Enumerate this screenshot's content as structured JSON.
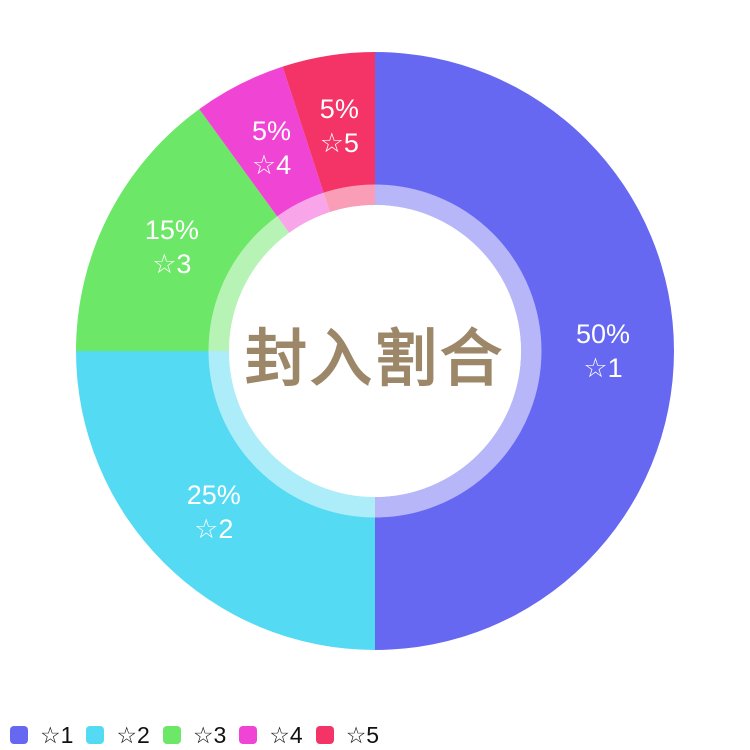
{
  "chart_data": {
    "type": "pie",
    "donut": true,
    "title": "封入割合",
    "categories": [
      "☆1",
      "☆2",
      "☆3",
      "☆4",
      "☆5"
    ],
    "values": [
      50,
      25,
      15,
      5,
      5
    ],
    "percent_labels": [
      "50%",
      "25%",
      "15%",
      "5%",
      "5%"
    ],
    "colors": [
      "#6668f2",
      "#54daf2",
      "#6ce767",
      "#f044d4",
      "#f43366"
    ],
    "unit": "%",
    "start_angle_deg": 0,
    "direction": "clockwise",
    "slice_label_color": "#ffffff",
    "center_label": "封入割合",
    "center_label_color": "#9c8769",
    "background_color": "#ffffff",
    "legend": {
      "position": "bottom-left",
      "items": [
        "☆1",
        "☆2",
        "☆3",
        "☆4",
        "☆5"
      ]
    }
  }
}
